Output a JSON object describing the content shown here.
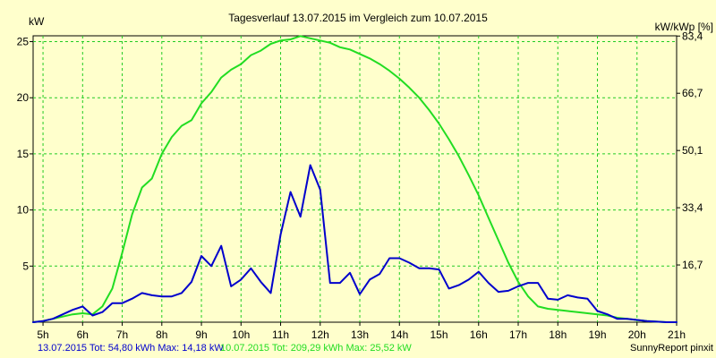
{
  "chart_data": {
    "type": "line",
    "title": "Tagesverlauf 13.07.2015 im Vergleich zum 10.07.2015",
    "ylabel_left": "kW",
    "ylabel_right": "kW/kWp [%]",
    "xlim": [
      4.75,
      21.0
    ],
    "ylim": [
      0,
      25.52
    ],
    "grid": true,
    "x_ticks": [
      {
        "x": 5,
        "label": "5h"
      },
      {
        "x": 6,
        "label": "6h"
      },
      {
        "x": 7,
        "label": "7h"
      },
      {
        "x": 8,
        "label": "8h"
      },
      {
        "x": 9,
        "label": "9h"
      },
      {
        "x": 10,
        "label": "10h"
      },
      {
        "x": 11,
        "label": "11h"
      },
      {
        "x": 12,
        "label": "12h"
      },
      {
        "x": 13,
        "label": "13h"
      },
      {
        "x": 14,
        "label": "14h"
      },
      {
        "x": 15,
        "label": "15h"
      },
      {
        "x": 16,
        "label": "16h"
      },
      {
        "x": 17,
        "label": "17h"
      },
      {
        "x": 18,
        "label": "18h"
      },
      {
        "x": 19,
        "label": "19h"
      },
      {
        "x": 20,
        "label": "20h"
      },
      {
        "x": 21,
        "label": "21h"
      }
    ],
    "y_ticks_left": [
      {
        "y": 5,
        "label": "5"
      },
      {
        "y": 10,
        "label": "10"
      },
      {
        "y": 15,
        "label": "15"
      },
      {
        "y": 20,
        "label": "20"
      },
      {
        "y": 25,
        "label": "25"
      }
    ],
    "y_ticks_right": [
      {
        "y": 5.1,
        "label": "16,7"
      },
      {
        "y": 10.2,
        "label": "33,4"
      },
      {
        "y": 15.3,
        "label": "50,1"
      },
      {
        "y": 20.4,
        "label": "66,7"
      },
      {
        "y": 25.5,
        "label": "83,4"
      }
    ],
    "series": [
      {
        "name": "13.07.2015",
        "color": "#0000cc",
        "x": [
          4.75,
          5.0,
          5.25,
          5.5,
          5.75,
          6.0,
          6.25,
          6.5,
          6.75,
          7.0,
          7.25,
          7.5,
          7.75,
          8.0,
          8.25,
          8.5,
          8.75,
          9.0,
          9.25,
          9.5,
          9.75,
          10.0,
          10.25,
          10.5,
          10.75,
          11.0,
          11.25,
          11.5,
          11.75,
          12.0,
          12.25,
          12.5,
          12.75,
          13.0,
          13.25,
          13.5,
          13.75,
          14.0,
          14.25,
          14.5,
          14.75,
          15.0,
          15.25,
          15.5,
          15.75,
          16.0,
          16.25,
          16.5,
          16.75,
          17.0,
          17.25,
          17.5,
          17.75,
          18.0,
          18.25,
          18.5,
          18.75,
          19.0,
          19.25,
          19.5,
          19.75,
          20.0,
          20.25,
          20.5,
          20.75,
          21.0
        ],
        "values": [
          0.0,
          0.1,
          0.3,
          0.7,
          1.1,
          1.4,
          0.6,
          0.9,
          1.7,
          1.7,
          2.1,
          2.6,
          2.4,
          2.3,
          2.3,
          2.6,
          3.6,
          5.9,
          5.0,
          6.8,
          3.2,
          3.8,
          4.8,
          3.6,
          2.6,
          7.8,
          11.6,
          9.4,
          14.0,
          11.8,
          3.5,
          3.5,
          4.4,
          2.5,
          3.8,
          4.3,
          5.7,
          5.7,
          5.3,
          4.8,
          4.8,
          4.7,
          3.0,
          3.3,
          3.8,
          4.5,
          3.5,
          2.7,
          2.8,
          3.2,
          3.5,
          3.5,
          2.1,
          2.0,
          2.4,
          2.2,
          2.1,
          1.0,
          0.7,
          0.3,
          0.3,
          0.2,
          0.1,
          0.05,
          0.0,
          0.0
        ]
      },
      {
        "name": "10.07.2015",
        "color": "#22dd22",
        "x": [
          4.75,
          5.0,
          5.25,
          5.5,
          5.75,
          6.0,
          6.25,
          6.5,
          6.75,
          7.0,
          7.25,
          7.5,
          7.75,
          8.0,
          8.25,
          8.5,
          8.75,
          9.0,
          9.25,
          9.5,
          9.75,
          10.0,
          10.25,
          10.5,
          10.75,
          11.0,
          11.25,
          11.5,
          11.75,
          12.0,
          12.25,
          12.5,
          12.75,
          13.0,
          13.25,
          13.5,
          13.75,
          14.0,
          14.25,
          14.5,
          14.75,
          15.0,
          15.25,
          15.5,
          15.75,
          16.0,
          16.25,
          16.5,
          16.75,
          17.0,
          17.25,
          17.5,
          17.75,
          18.0,
          18.25,
          18.5,
          18.75,
          19.0,
          19.25,
          19.5,
          19.75,
          20.0,
          20.25,
          20.5,
          20.75,
          21.0
        ],
        "values": [
          0.0,
          0.1,
          0.3,
          0.5,
          0.7,
          0.8,
          0.7,
          1.4,
          3.0,
          6.2,
          9.6,
          12.0,
          12.8,
          15.0,
          16.5,
          17.5,
          18.0,
          19.5,
          20.5,
          21.8,
          22.5,
          23.0,
          23.8,
          24.2,
          24.8,
          25.1,
          25.2,
          25.5,
          25.3,
          25.1,
          24.9,
          24.5,
          24.3,
          23.9,
          23.5,
          23.0,
          22.4,
          21.7,
          20.9,
          20.0,
          18.9,
          17.7,
          16.3,
          14.8,
          13.1,
          11.3,
          9.3,
          7.3,
          5.3,
          3.6,
          2.3,
          1.4,
          1.2,
          1.1,
          1.0,
          0.9,
          0.8,
          0.7,
          0.6,
          0.4,
          0.3,
          0.2,
          0.1,
          0.05,
          0.0,
          0.0
        ]
      }
    ],
    "legend": [
      {
        "text": "13.07.2015 Tot: 54,80 kWh Max: 14,18 kW",
        "color": "#0000cc"
      },
      {
        "text": "10.07.2015 Tot: 209,29 kWh Max: 25,52 kW",
        "color": "#22dd22"
      }
    ],
    "footer_right": "SunnyReport pinxit"
  }
}
